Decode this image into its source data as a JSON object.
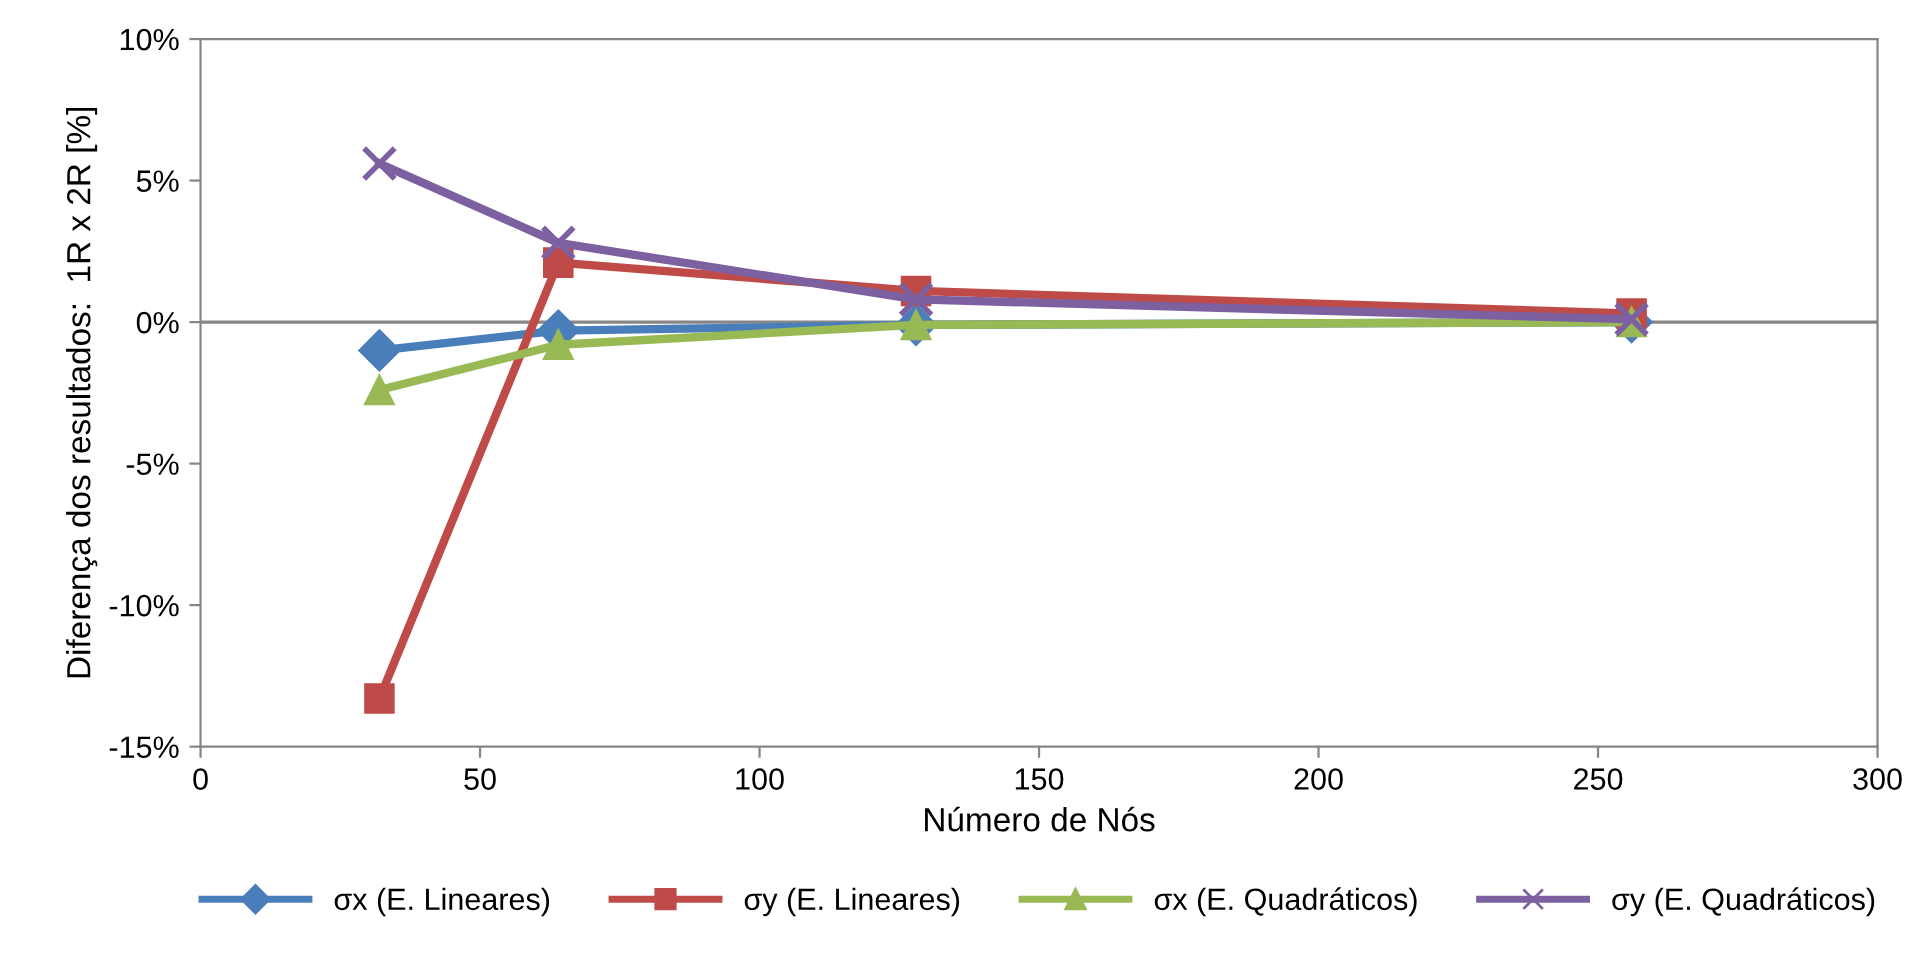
{
  "chart_data": {
    "type": "line",
    "xlabel": "Número de Nós",
    "ylabel": "Diferença dos resultados:  1R x 2R [%]",
    "xlim": [
      0,
      300
    ],
    "xticks": [
      0,
      50,
      100,
      150,
      200,
      250,
      300
    ],
    "ylim": [
      -15,
      10
    ],
    "yticks": [
      {
        "value": -15,
        "label": "-15%"
      },
      {
        "value": -10,
        "label": "-10%"
      },
      {
        "value": -5,
        "label": "-5%"
      },
      {
        "value": 0,
        "label": "0%"
      },
      {
        "value": 5,
        "label": "5%"
      },
      {
        "value": 10,
        "label": "10%"
      }
    ],
    "x": [
      32,
      64,
      128,
      256
    ],
    "series": [
      {
        "name": "σx (E. Lineares)",
        "color": "#4a7ebb",
        "marker": "diamond",
        "values": [
          -1.0,
          -0.3,
          -0.1,
          0.0
        ]
      },
      {
        "name": "σy (E. Lineares)",
        "color": "#be4b48",
        "marker": "square",
        "values": [
          -13.3,
          2.1,
          1.1,
          0.3
        ]
      },
      {
        "name": "σx (E. Quadráticos)",
        "color": "#98b954",
        "marker": "triangle",
        "values": [
          -2.4,
          -0.8,
          -0.1,
          0.0
        ]
      },
      {
        "name": "σy (E. Quadráticos)",
        "color": "#7d60a0",
        "marker": "cross",
        "values": [
          5.6,
          2.8,
          0.8,
          0.1
        ]
      }
    ],
    "ref_lines": [
      {
        "axis": "y",
        "value": 0,
        "color": "#868686"
      }
    ],
    "grid": false,
    "legend": "bottom"
  }
}
